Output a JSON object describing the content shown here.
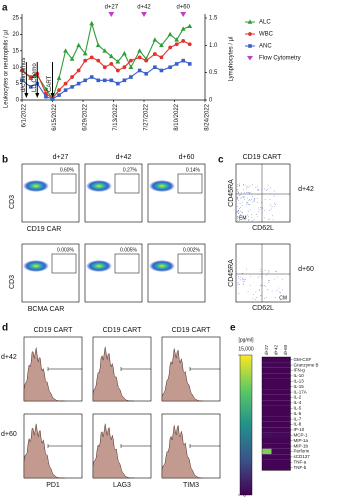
{
  "chart_data": [
    {
      "type": "line",
      "label": "a",
      "y_label": "Leukocytes or neutrophils / µl",
      "y2_label": "Lymphocytes / µl",
      "x": [
        "2022-06-01",
        "2022-06-05",
        "2022-06-08",
        "2022-06-12",
        "2022-06-15",
        "2022-06-18",
        "2022-06-21",
        "2022-06-24",
        "2022-06-27",
        "2022-06-30",
        "2022-07-03",
        "2022-07-06",
        "2022-07-09",
        "2022-07-12",
        "2022-07-15",
        "2022-07-18",
        "2022-07-21",
        "2022-07-25",
        "2022-07-28",
        "2022-08-01",
        "2022-08-04",
        "2022-08-08",
        "2022-08-11",
        "2022-08-14",
        "2022-08-17"
      ],
      "xlim": [
        "2022-06-01",
        "2022-08-24"
      ],
      "xticks": [
        {
          "value": "2022-06-01",
          "label": "6/1/2022"
        },
        {
          "value": "2022-06-15",
          "label": "6/15/2022"
        },
        {
          "value": "2022-06-29",
          "label": "6/29/2022"
        },
        {
          "value": "2022-07-13",
          "label": "7/13/2022"
        },
        {
          "value": "2022-07-27",
          "label": "7/27/2022"
        },
        {
          "value": "2022-08-10",
          "label": "8/10/2022"
        },
        {
          "value": "2022-08-24",
          "label": "8/24/2022"
        }
      ],
      "ylim": [
        0,
        25
      ],
      "yticks": [
        0,
        5,
        10,
        15,
        20,
        25
      ],
      "y2lim": [
        0,
        1.5
      ],
      "y2ticks": [
        0,
        0.5,
        {
          "value": 1,
          "label": "1.0"
        },
        1.5
      ],
      "series": [
        {
          "name": "ALC",
          "color": "#2e9e3a",
          "marker": "triangle",
          "axis": "y2",
          "values": [
            0.55,
            0.4,
            0.45,
            0.2,
            0.02,
            0.4,
            0.9,
            0.75,
            1.0,
            0.85,
            1.4,
            1.0,
            0.9,
            0.8,
            0.7,
            0.85,
            0.6,
            0.9,
            0.75,
            1.1,
            1.0,
            1.2,
            1.1,
            1.3,
            1.35
          ]
        },
        {
          "name": "WBC",
          "color": "#e2322a",
          "marker": "circle",
          "values": [
            9,
            7,
            8,
            2,
            0.5,
            3,
            5,
            7,
            9,
            12,
            13,
            12,
            10,
            11,
            9,
            10,
            12,
            13,
            12,
            14,
            13,
            16,
            17,
            18,
            17
          ]
        },
        {
          "name": "ANC",
          "color": "#3a5fc8",
          "marker": "square",
          "values": [
            6,
            4,
            5,
            1,
            0.3,
            1.5,
            3,
            4,
            5,
            6,
            7,
            6,
            6,
            6,
            5,
            6,
            7,
            9,
            8,
            10,
            9,
            10,
            11,
            12,
            11
          ]
        }
      ],
      "annotations": [
        {
          "text": "d/c Sirolimus",
          "x": "2022-06-03"
        },
        {
          "text": "LD Chemo",
          "x": "2022-06-08"
        },
        {
          "text": "CART",
          "x": "2022-06-15"
        }
      ],
      "flow_markers": {
        "name": "Flow Cytometry",
        "color": "#c040c8",
        "points": [
          {
            "text": "d+27",
            "x": "2022-07-12"
          },
          {
            "text": "d+42",
            "x": "2022-07-27"
          },
          {
            "text": "d+60",
            "x": "2022-08-14"
          }
        ]
      },
      "legend": "right"
    },
    {
      "type": "heatmap",
      "label": "e",
      "unit": "[pg/ml]",
      "columns": [
        "d+27",
        "d+42",
        "d+60"
      ],
      "rows": [
        "GM-CSF",
        "Granzyme B",
        "IFN-g",
        "IL-10",
        "IL-13",
        "IL-15",
        "IL-17A",
        "IL-2",
        "IL-4",
        "IL-5",
        "IL-6",
        "IL-7",
        "IL-8",
        "IP-10",
        "MCP-1",
        "MIP-1a",
        "MIP-1b",
        "Perforin",
        "sCD137",
        "TNF-a",
        "TNF-b"
      ],
      "values": [
        [
          100,
          100,
          100
        ],
        [
          300,
          200,
          200
        ],
        [
          100,
          100,
          100
        ],
        [
          100,
          100,
          100
        ],
        [
          100,
          100,
          100
        ],
        [
          100,
          100,
          100
        ],
        [
          100,
          100,
          100
        ],
        [
          100,
          100,
          100
        ],
        [
          100,
          100,
          100
        ],
        [
          100,
          100,
          100
        ],
        [
          100,
          100,
          100
        ],
        [
          100,
          100,
          100
        ],
        [
          100,
          100,
          100
        ],
        [
          300,
          200,
          200
        ],
        [
          600,
          400,
          400
        ],
        [
          100,
          100,
          100
        ],
        [
          200,
          100,
          100
        ],
        [
          12000,
          300,
          200
        ],
        [
          200,
          100,
          100
        ],
        [
          100,
          100,
          100
        ],
        [
          100,
          100,
          100
        ]
      ],
      "zlim": [
        0,
        15000
      ],
      "zticks": [
        0,
        {
          "value": 15000,
          "label": "15,000"
        }
      ]
    }
  ],
  "panel_b": {
    "label": "b",
    "columns": [
      "d+27",
      "d+42",
      "d+60"
    ],
    "y_label_top": "CD3",
    "x_label_top": "CD19 CAR",
    "y_label_bottom": "CD3",
    "x_label_bottom": "BCMA CAR",
    "gates_top": [
      "0.60%",
      "0.27%",
      "0.14%"
    ],
    "gates_bottom": [
      "0.003%",
      "0.005%",
      "0.002%"
    ]
  },
  "panel_c": {
    "label": "c",
    "title": "CD19 CART",
    "y_label": "CD45RA",
    "x_label": "CD62L",
    "rows": [
      "d+42",
      "d+60"
    ],
    "quadrant_top": "EM",
    "quadrant_bottom": "CM"
  },
  "panel_d": {
    "label": "d",
    "titles": [
      "CD19 CART",
      "CD19 CART",
      "CD19 CART"
    ],
    "rows": [
      "d+42",
      "d+60"
    ],
    "x_labels": [
      "PD1",
      "LAG3",
      "TIM3"
    ]
  }
}
